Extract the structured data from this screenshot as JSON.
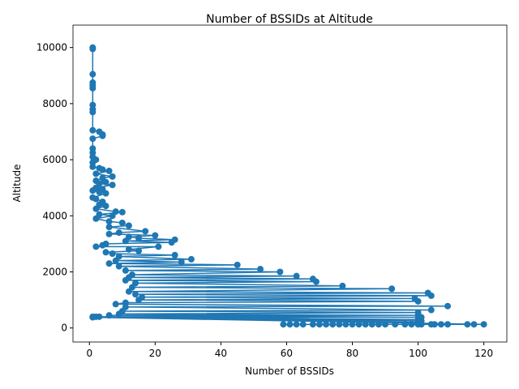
{
  "chart_data": {
    "type": "line",
    "title": "Number of BSSIDs at Altitude",
    "x_label": "Number of BSSIDs",
    "y_label": "Altitude",
    "x": [
      1,
      1,
      1,
      1,
      1,
      1,
      1,
      1,
      1,
      1,
      3,
      4,
      4,
      1,
      1,
      1,
      1,
      2,
      1,
      1,
      3,
      4,
      6,
      2,
      7,
      4,
      2,
      5,
      3,
      7,
      2,
      4,
      1,
      3,
      5,
      1,
      2,
      4,
      3,
      5,
      2,
      8,
      10,
      3,
      7,
      2,
      6,
      10,
      12,
      6,
      17,
      9,
      6,
      20,
      12,
      15,
      26,
      11,
      25,
      5,
      4,
      2,
      21,
      12,
      15,
      5,
      7,
      26,
      9,
      31,
      8,
      28,
      6,
      45,
      9,
      52,
      11,
      58,
      13,
      63,
      12,
      68,
      11,
      69,
      14,
      77,
      13,
      92,
      12,
      103,
      14,
      104,
      16,
      99,
      15,
      100,
      11,
      8,
      109,
      11,
      104,
      10,
      100,
      9,
      100,
      6,
      101,
      2,
      100,
      1,
      101,
      3,
      100,
      1,
      120,
      117,
      115,
      109,
      107,
      105,
      104,
      101,
      100,
      98,
      96,
      93,
      90,
      88,
      86,
      84,
      82,
      80,
      78,
      76,
      74,
      72,
      70,
      68,
      65,
      63,
      61,
      59
    ],
    "series": [
      {
        "name": "Altitude",
        "color": "#1f77b4",
        "values": [
          10000,
          9950,
          9050,
          8750,
          8650,
          8550,
          7950,
          7800,
          7700,
          7050,
          7000,
          6900,
          6850,
          6750,
          6400,
          6250,
          6100,
          6000,
          5900,
          5750,
          5700,
          5650,
          5600,
          5500,
          5400,
          5350,
          5250,
          5200,
          5150,
          5100,
          5000,
          4950,
          4900,
          4850,
          4800,
          4650,
          4600,
          4500,
          4400,
          4350,
          4250,
          4150,
          4130,
          4050,
          4000,
          3900,
          3800,
          3750,
          3650,
          3600,
          3450,
          3400,
          3350,
          3300,
          3250,
          3200,
          3150,
          3100,
          3050,
          3000,
          2950,
          2900,
          2900,
          2800,
          2750,
          2700,
          2650,
          2600,
          2550,
          2450,
          2400,
          2350,
          2300,
          2250,
          2200,
          2100,
          2050,
          2000,
          1900,
          1850,
          1800,
          1750,
          1700,
          1650,
          1600,
          1500,
          1450,
          1400,
          1300,
          1250,
          1200,
          1150,
          1100,
          1050,
          1000,
          950,
          900,
          850,
          780,
          750,
          640,
          600,
          550,
          500,
          450,
          450,
          380,
          400,
          300,
          400,
          250,
          400,
          200,
          380,
          130,
          130,
          130,
          130,
          130,
          130,
          130,
          130,
          130,
          130,
          130,
          130,
          130,
          130,
          130,
          130,
          130,
          130,
          130,
          130,
          130,
          130,
          130,
          130,
          130,
          130,
          130,
          130
        ]
      }
    ],
    "xlim": [
      -5,
      127
    ],
    "ylim": [
      -500,
      10800
    ],
    "xticks": [
      0,
      20,
      40,
      60,
      80,
      100,
      120
    ],
    "yticks": [
      0,
      2000,
      4000,
      6000,
      8000,
      10000
    ]
  }
}
